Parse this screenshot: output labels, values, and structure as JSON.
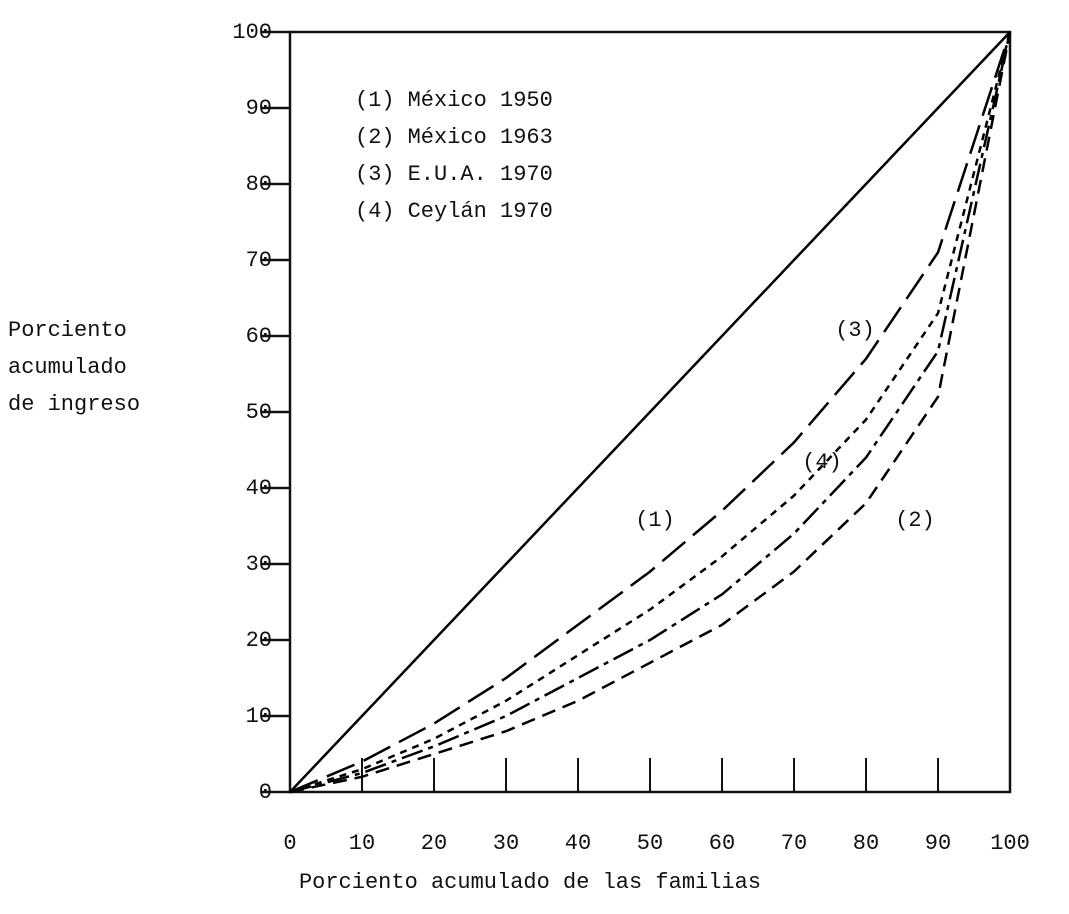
{
  "chart_data": {
    "type": "line",
    "ylabel": [
      "Porciento",
      "acumulado",
      "de ingreso"
    ],
    "xlabel": "Porciento acumulado de las familias",
    "x": [
      0,
      10,
      20,
      30,
      40,
      50,
      60,
      70,
      80,
      90,
      100
    ],
    "xlim": [
      0,
      100
    ],
    "ylim": [
      0,
      100
    ],
    "xticks": [
      0,
      10,
      20,
      30,
      40,
      50,
      60,
      70,
      80,
      90,
      100
    ],
    "yticks": [
      0,
      10,
      20,
      30,
      40,
      50,
      60,
      70,
      80,
      90,
      100
    ],
    "series": [
      {
        "color": "#000000",
        "values": [
          0,
          10,
          20,
          30,
          40,
          50,
          60,
          70,
          80,
          90,
          100
        ]
      },
      {
        "label": "(1)",
        "name": "México 1950",
        "color": "#000000",
        "values": [
          0,
          2.5,
          6,
          10,
          15,
          20,
          26,
          34,
          44,
          58,
          100
        ]
      },
      {
        "label": "(2)",
        "name": "México 1963",
        "color": "#000000",
        "values": [
          0,
          2,
          5,
          8,
          12,
          17,
          22,
          29,
          38,
          52,
          100
        ]
      },
      {
        "label": "(3)",
        "name": "E.U.A. 1970",
        "color": "#000000",
        "values": [
          0,
          4,
          9,
          15,
          22,
          29,
          37,
          46,
          57,
          71,
          100
        ]
      },
      {
        "label": "(4)",
        "name": "Ceylán 1970",
        "color": "#000000",
        "values": [
          0,
          3,
          7,
          12,
          18,
          24,
          31,
          39,
          49,
          63,
          100
        ]
      }
    ]
  }
}
